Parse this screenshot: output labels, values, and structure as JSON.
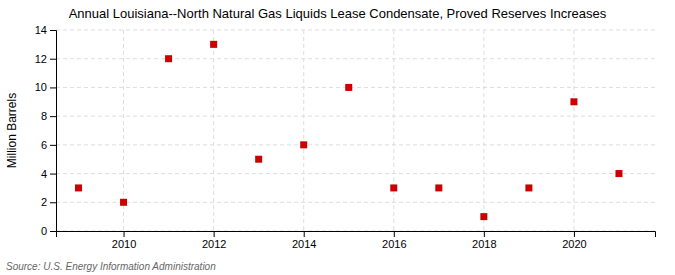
{
  "chart_data": {
    "type": "scatter",
    "title": "Annual Louisiana--North Natural Gas Liquids Lease Condensate, Proved Reserves Increases",
    "ylabel": "Million Barrels",
    "source": "Source: U.S. Energy Information Administration",
    "x": [
      2009,
      2010,
      2011,
      2012,
      2013,
      2014,
      2015,
      2016,
      2017,
      2018,
      2019,
      2020,
      2021
    ],
    "values": [
      3,
      2,
      12,
      13,
      5,
      6,
      10,
      3,
      3,
      1,
      3,
      9,
      4
    ],
    "color": "#cc0000",
    "marker": "square",
    "xlim": [
      2008.5,
      2021.8
    ],
    "xticks": [
      2010,
      2012,
      2014,
      2016,
      2018,
      2020
    ],
    "ylim": [
      0,
      14
    ],
    "yticks": [
      0,
      2,
      4,
      6,
      8,
      10,
      12,
      14
    ],
    "grid": true
  }
}
